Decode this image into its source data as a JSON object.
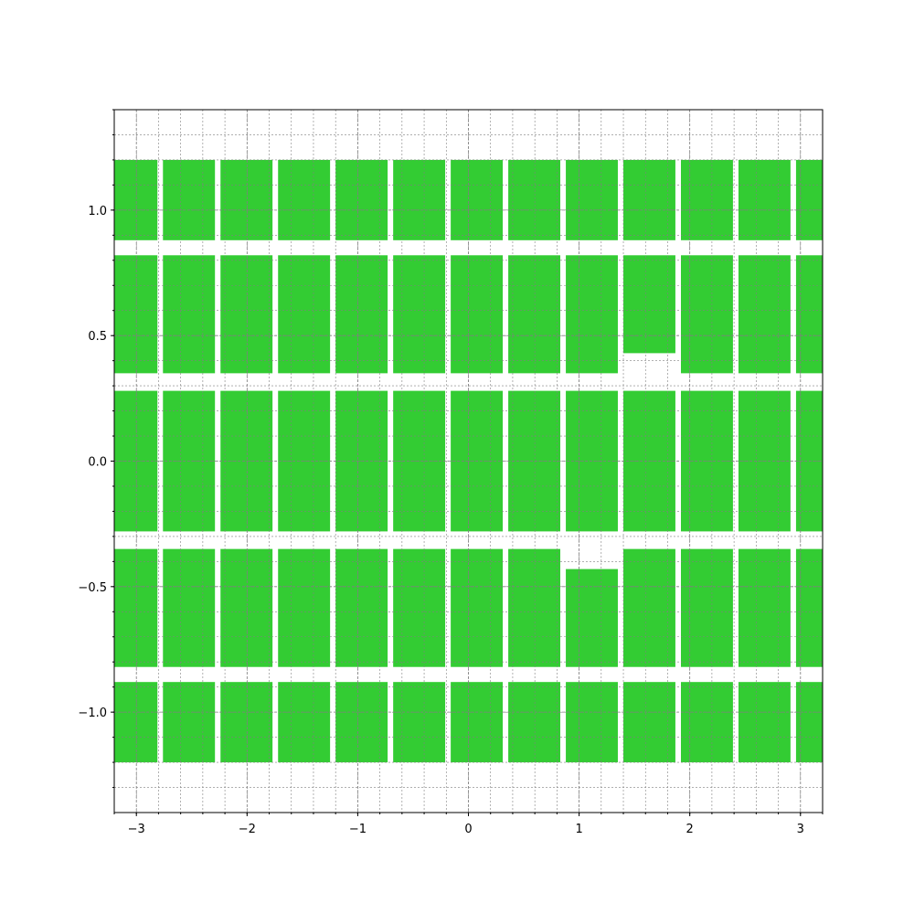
{
  "chart_data": {
    "type": "bar",
    "title": "",
    "xlabel": "",
    "ylabel": "",
    "xlim": [
      -3.2,
      3.2
    ],
    "ylim": [
      -1.4,
      1.4
    ],
    "grid": true,
    "grid_minor": true,
    "bar_color": "#33cc33",
    "x_ticks": [
      -3,
      -2,
      -1,
      0,
      1,
      2,
      3
    ],
    "x_tick_labels": [
      "−3",
      "−2",
      "−1",
      "0",
      "1",
      "2",
      "3"
    ],
    "y_ticks": [
      -1.0,
      -0.5,
      0.0,
      0.5,
      1.0
    ],
    "y_tick_labels": [
      "−1.0",
      "−0.5",
      "0.0",
      "0.5",
      "1.0"
    ],
    "x_minor_step": 0.2,
    "y_minor_step": 0.1,
    "column_edges": [
      [
        -3.2,
        -2.81
      ],
      [
        -2.76,
        -2.29
      ],
      [
        -2.24,
        -1.77
      ],
      [
        -1.72,
        -1.25
      ],
      [
        -1.2,
        -0.73
      ],
      [
        -0.68,
        -0.21
      ],
      [
        -0.16,
        0.31
      ],
      [
        0.36,
        0.83
      ],
      [
        0.88,
        1.35
      ],
      [
        1.4,
        1.87
      ],
      [
        1.92,
        2.39
      ],
      [
        2.44,
        2.91
      ],
      [
        2.96,
        3.2
      ]
    ],
    "rows": [
      {
        "y0": 0.88,
        "y1": 1.2,
        "cells": [
          [
            0.88,
            1.2
          ],
          [
            0.88,
            1.2
          ],
          [
            0.88,
            1.2
          ],
          [
            0.88,
            1.2
          ],
          [
            0.88,
            1.2
          ],
          [
            0.88,
            1.2
          ],
          [
            0.88,
            1.2
          ],
          [
            0.88,
            1.2
          ],
          [
            0.88,
            1.2
          ],
          [
            0.88,
            1.2
          ],
          [
            0.88,
            1.2
          ],
          [
            0.88,
            1.2
          ],
          [
            0.88,
            1.2
          ]
        ]
      },
      {
        "y0": 0.35,
        "y1": 0.82,
        "cells": [
          [
            0.35,
            0.82
          ],
          [
            0.35,
            0.82
          ],
          [
            0.35,
            0.82
          ],
          [
            0.35,
            0.82
          ],
          [
            0.35,
            0.82
          ],
          [
            0.35,
            0.82
          ],
          [
            0.35,
            0.82
          ],
          [
            0.35,
            0.82
          ],
          [
            0.35,
            0.82
          ],
          [
            0.43,
            0.82
          ],
          [
            0.35,
            0.82
          ],
          [
            0.35,
            0.82
          ],
          [
            0.35,
            0.82
          ]
        ]
      },
      {
        "y0": -0.28,
        "y1": 0.28,
        "cells": [
          [
            -0.28,
            0.28
          ],
          [
            -0.28,
            0.28
          ],
          [
            -0.28,
            0.28
          ],
          [
            -0.28,
            0.28
          ],
          [
            -0.28,
            0.28
          ],
          [
            -0.28,
            0.28
          ],
          [
            -0.28,
            0.28
          ],
          [
            -0.28,
            0.28
          ],
          [
            -0.28,
            0.28
          ],
          [
            -0.28,
            0.28
          ],
          [
            -0.28,
            0.28
          ],
          [
            -0.28,
            0.28
          ],
          [
            -0.28,
            0.28
          ]
        ]
      },
      {
        "y0": -0.82,
        "y1": -0.35,
        "cells": [
          [
            -0.82,
            -0.35
          ],
          [
            -0.82,
            -0.35
          ],
          [
            -0.82,
            -0.35
          ],
          [
            -0.82,
            -0.35
          ],
          [
            -0.82,
            -0.35
          ],
          [
            -0.82,
            -0.35
          ],
          [
            -0.82,
            -0.35
          ],
          [
            -0.82,
            -0.35
          ],
          [
            -0.82,
            -0.43
          ],
          [
            -0.82,
            -0.35
          ],
          [
            -0.82,
            -0.35
          ],
          [
            -0.82,
            -0.35
          ],
          [
            -0.82,
            -0.35
          ]
        ]
      },
      {
        "y0": -1.2,
        "y1": -0.88,
        "cells": [
          [
            -1.2,
            -0.88
          ],
          [
            -1.2,
            -0.88
          ],
          [
            -1.2,
            -0.88
          ],
          [
            -1.2,
            -0.88
          ],
          [
            -1.2,
            -0.88
          ],
          [
            -1.2,
            -0.88
          ],
          [
            -1.2,
            -0.88
          ],
          [
            -1.2,
            -0.88
          ],
          [
            -1.2,
            -0.88
          ],
          [
            -1.2,
            -0.88
          ],
          [
            -1.2,
            -0.88
          ],
          [
            -1.2,
            -0.88
          ],
          [
            -1.2,
            -0.88
          ]
        ]
      }
    ]
  }
}
